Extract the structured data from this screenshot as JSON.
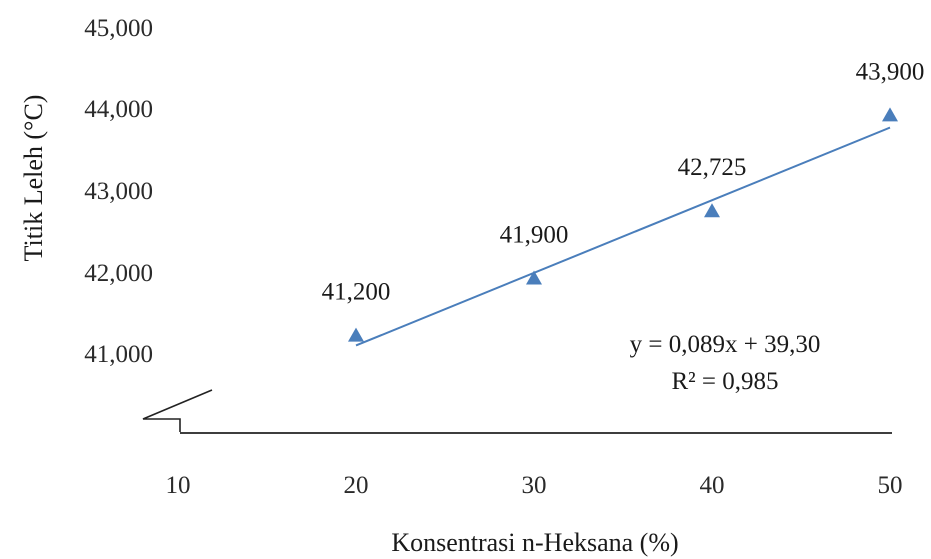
{
  "chart_data": {
    "type": "scatter",
    "xlabel": "Konsentrasi n-Heksana (%)",
    "ylabel": "Titik Leleh (°C)",
    "x_ticks": [
      "10",
      "20",
      "30",
      "40",
      "50"
    ],
    "y_ticks": [
      "41,000",
      "42,000",
      "43,000",
      "44,000",
      "45,000"
    ],
    "xlim": [
      10,
      50
    ],
    "ylim": [
      40,
      45
    ],
    "axis_break": true,
    "grid": false,
    "series": [
      {
        "points": [
          {
            "x": 20,
            "y": 41.2,
            "label": "41,200"
          },
          {
            "x": 30,
            "y": 41.9,
            "label": "41,900"
          },
          {
            "x": 40,
            "y": 42.725,
            "label": "42,725"
          },
          {
            "x": 50,
            "y": 43.9,
            "label": "43,900"
          }
        ],
        "marker": "triangle",
        "color": "#4a7ebb"
      }
    ],
    "trendline": {
      "slope": 0.089,
      "intercept": 39.3,
      "x_range": [
        20,
        50
      ],
      "color": "#4a7ebb",
      "equation": "y = 0,089x + 39,30",
      "r_squared": "R² = 0,985"
    }
  }
}
